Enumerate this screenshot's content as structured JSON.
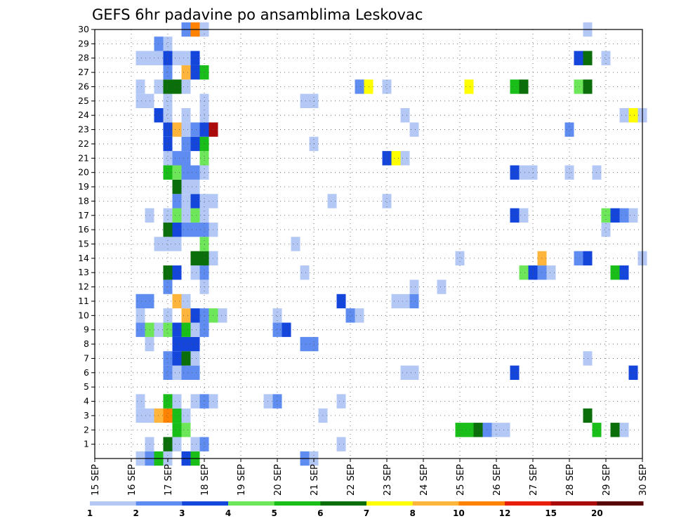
{
  "chart_data": {
    "type": "heatmap",
    "title": "GEFS 6hr padavine po ansamblima Leskovac",
    "xlabel": "",
    "ylabel": "",
    "x_ticks": [
      "15 SEP",
      "16 SEP",
      "17 SEP",
      "18 SEP",
      "19 SEP",
      "20 SEP",
      "21 SEP",
      "22 SEP",
      "23 SEP",
      "24 SEP",
      "25 SEP",
      "26 SEP",
      "27 SEP",
      "28 SEP",
      "29 SEP",
      "30 SEP"
    ],
    "y_ticks": [
      "1",
      "2",
      "3",
      "4",
      "5",
      "6",
      "7",
      "8",
      "9",
      "10",
      "11",
      "12",
      "13",
      "14",
      "15",
      "16",
      "17",
      "18",
      "19",
      "20",
      "21",
      "22",
      "23",
      "24",
      "25",
      "26",
      "27",
      "28",
      "29",
      "30"
    ],
    "xlim": [
      0,
      15
    ],
    "ylim": [
      0,
      30
    ],
    "step_days": 0.25,
    "grid": true,
    "colorbar": {
      "labels": [
        "1",
        "2",
        "3",
        "4",
        "5",
        "6",
        "7",
        "8",
        "10",
        "12",
        "15",
        "20"
      ],
      "colors": [
        "#b4c8f5",
        "#5f8cf0",
        "#1446dc",
        "#6ee65a",
        "#19be19",
        "#0a6e0a",
        "#ffff00",
        "#ffb43c",
        "#ff8200",
        "#e61e0a",
        "#aa0a0a",
        "#5a0505"
      ]
    },
    "cells": [
      [
        1.25,
        0,
        0
      ],
      [
        1.5,
        0,
        1
      ],
      [
        1.75,
        0,
        4
      ],
      [
        2.0,
        0,
        0
      ],
      [
        2.5,
        0,
        2
      ],
      [
        2.75,
        0,
        4
      ],
      [
        5.75,
        0,
        1
      ],
      [
        6.0,
        0,
        0
      ],
      [
        1.5,
        1,
        0
      ],
      [
        2.0,
        1,
        5
      ],
      [
        2.25,
        1,
        0
      ],
      [
        2.75,
        1,
        0
      ],
      [
        3.0,
        1,
        1
      ],
      [
        6.75,
        1,
        0
      ],
      [
        2.25,
        2,
        4
      ],
      [
        2.5,
        2,
        3
      ],
      [
        10.0,
        2,
        4
      ],
      [
        10.25,
        2,
        4
      ],
      [
        10.5,
        2,
        5
      ],
      [
        10.75,
        2,
        1
      ],
      [
        11.0,
        2,
        0
      ],
      [
        11.25,
        2,
        0
      ],
      [
        13.75,
        2,
        4
      ],
      [
        14.25,
        2,
        5
      ],
      [
        14.5,
        2,
        0
      ],
      [
        1.25,
        3,
        0
      ],
      [
        1.5,
        3,
        0
      ],
      [
        1.75,
        3,
        7
      ],
      [
        2.0,
        3,
        8
      ],
      [
        2.25,
        3,
        4
      ],
      [
        2.5,
        3,
        0
      ],
      [
        6.25,
        3,
        0
      ],
      [
        13.5,
        3,
        5
      ],
      [
        1.25,
        4,
        0
      ],
      [
        2.0,
        4,
        4
      ],
      [
        2.25,
        4,
        0
      ],
      [
        2.75,
        4,
        0
      ],
      [
        3.0,
        4,
        1
      ],
      [
        3.25,
        4,
        0
      ],
      [
        4.75,
        4,
        0
      ],
      [
        5.0,
        4,
        1
      ],
      [
        6.75,
        4,
        0
      ],
      [
        2.0,
        6,
        1
      ],
      [
        2.25,
        6,
        0
      ],
      [
        2.5,
        6,
        1
      ],
      [
        2.75,
        6,
        1
      ],
      [
        8.5,
        6,
        0
      ],
      [
        8.75,
        6,
        0
      ],
      [
        11.5,
        6,
        2
      ],
      [
        14.75,
        6,
        2
      ],
      [
        2.0,
        7,
        1
      ],
      [
        2.25,
        7,
        2
      ],
      [
        2.5,
        7,
        5
      ],
      [
        2.75,
        7,
        0
      ],
      [
        13.5,
        7,
        0
      ],
      [
        1.5,
        8,
        0
      ],
      [
        2.25,
        8,
        2
      ],
      [
        2.5,
        8,
        2
      ],
      [
        2.75,
        8,
        2
      ],
      [
        5.75,
        8,
        1
      ],
      [
        6.0,
        8,
        1
      ],
      [
        1.25,
        9,
        1
      ],
      [
        1.5,
        9,
        3
      ],
      [
        1.75,
        9,
        0
      ],
      [
        2.0,
        9,
        3
      ],
      [
        2.25,
        9,
        2
      ],
      [
        2.5,
        9,
        4
      ],
      [
        2.75,
        9,
        0
      ],
      [
        3.0,
        9,
        1
      ],
      [
        5.0,
        9,
        1
      ],
      [
        5.25,
        9,
        2
      ],
      [
        1.25,
        10,
        0
      ],
      [
        2.0,
        10,
        0
      ],
      [
        2.5,
        10,
        7
      ],
      [
        2.75,
        10,
        2
      ],
      [
        3.0,
        10,
        1
      ],
      [
        3.25,
        10,
        3
      ],
      [
        3.5,
        10,
        0
      ],
      [
        5.0,
        10,
        0
      ],
      [
        7.0,
        10,
        1
      ],
      [
        7.25,
        10,
        0
      ],
      [
        1.25,
        11,
        1
      ],
      [
        1.5,
        11,
        1
      ],
      [
        2.25,
        11,
        7
      ],
      [
        2.5,
        11,
        0
      ],
      [
        6.75,
        11,
        2
      ],
      [
        8.25,
        11,
        0
      ],
      [
        8.5,
        11,
        0
      ],
      [
        8.75,
        11,
        1
      ],
      [
        2.0,
        12,
        1
      ],
      [
        3.0,
        12,
        0
      ],
      [
        8.75,
        12,
        0
      ],
      [
        9.5,
        12,
        0
      ],
      [
        2.0,
        13,
        5
      ],
      [
        2.25,
        13,
        2
      ],
      [
        2.75,
        13,
        0
      ],
      [
        3.0,
        13,
        1
      ],
      [
        5.75,
        13,
        0
      ],
      [
        11.75,
        13,
        3
      ],
      [
        12.0,
        13,
        2
      ],
      [
        12.25,
        13,
        1
      ],
      [
        12.5,
        13,
        0
      ],
      [
        14.25,
        13,
        4
      ],
      [
        14.5,
        13,
        2
      ],
      [
        2.75,
        14,
        5
      ],
      [
        3.0,
        14,
        5
      ],
      [
        3.25,
        14,
        0
      ],
      [
        10.0,
        14,
        0
      ],
      [
        12.25,
        14,
        7
      ],
      [
        13.25,
        14,
        1
      ],
      [
        13.5,
        14,
        2
      ],
      [
        15.0,
        14,
        0
      ],
      [
        1.75,
        15,
        0
      ],
      [
        2.0,
        15,
        0
      ],
      [
        2.25,
        15,
        0
      ],
      [
        3.0,
        15,
        3
      ],
      [
        5.5,
        15,
        0
      ],
      [
        2.0,
        16,
        5
      ],
      [
        2.25,
        16,
        2
      ],
      [
        2.5,
        16,
        1
      ],
      [
        2.75,
        16,
        1
      ],
      [
        3.0,
        16,
        1
      ],
      [
        3.25,
        16,
        0
      ],
      [
        14.0,
        16,
        0
      ],
      [
        1.5,
        17,
        0
      ],
      [
        2.0,
        17,
        0
      ],
      [
        2.25,
        17,
        3
      ],
      [
        2.5,
        17,
        0
      ],
      [
        2.75,
        17,
        3
      ],
      [
        3.0,
        17,
        0
      ],
      [
        11.5,
        17,
        2
      ],
      [
        11.75,
        17,
        0
      ],
      [
        14.0,
        17,
        3
      ],
      [
        14.25,
        17,
        2
      ],
      [
        14.5,
        17,
        1
      ],
      [
        14.75,
        17,
        0
      ],
      [
        2.25,
        18,
        1
      ],
      [
        2.5,
        18,
        0
      ],
      [
        2.75,
        18,
        2
      ],
      [
        3.0,
        18,
        0
      ],
      [
        3.25,
        18,
        0
      ],
      [
        6.5,
        18,
        0
      ],
      [
        8.0,
        18,
        0
      ],
      [
        2.25,
        19,
        5
      ],
      [
        2.5,
        19,
        0
      ],
      [
        2.75,
        19,
        0
      ],
      [
        2.0,
        20,
        4
      ],
      [
        2.25,
        20,
        3
      ],
      [
        2.5,
        20,
        1
      ],
      [
        2.75,
        20,
        1
      ],
      [
        3.0,
        20,
        0
      ],
      [
        11.5,
        20,
        2
      ],
      [
        11.75,
        20,
        0
      ],
      [
        12.0,
        20,
        0
      ],
      [
        13.0,
        20,
        0
      ],
      [
        13.75,
        20,
        0
      ],
      [
        2.0,
        21,
        0
      ],
      [
        2.25,
        21,
        1
      ],
      [
        2.5,
        21,
        1
      ],
      [
        3.0,
        21,
        3
      ],
      [
        8.0,
        21,
        2
      ],
      [
        8.25,
        21,
        6
      ],
      [
        8.5,
        21,
        0
      ],
      [
        2.0,
        22,
        2
      ],
      [
        2.5,
        22,
        1
      ],
      [
        2.75,
        22,
        2
      ],
      [
        3.0,
        22,
        4
      ],
      [
        6.0,
        22,
        0
      ],
      [
        2.0,
        23,
        2
      ],
      [
        2.25,
        23,
        7
      ],
      [
        2.5,
        23,
        0
      ],
      [
        2.75,
        23,
        1
      ],
      [
        3.0,
        23,
        2
      ],
      [
        3.25,
        23,
        10
      ],
      [
        8.75,
        23,
        0
      ],
      [
        13.0,
        23,
        1
      ],
      [
        1.75,
        24,
        2
      ],
      [
        2.0,
        24,
        0
      ],
      [
        2.5,
        24,
        0
      ],
      [
        3.0,
        24,
        0
      ],
      [
        8.5,
        24,
        0
      ],
      [
        14.5,
        24,
        0
      ],
      [
        14.75,
        24,
        6
      ],
      [
        15.0,
        24,
        0
      ],
      [
        1.25,
        25,
        0
      ],
      [
        1.5,
        25,
        0
      ],
      [
        2.0,
        25,
        0
      ],
      [
        3.0,
        25,
        0
      ],
      [
        5.75,
        25,
        0
      ],
      [
        6.0,
        25,
        0
      ],
      [
        1.25,
        26,
        0
      ],
      [
        1.75,
        26,
        0
      ],
      [
        2.0,
        26,
        5
      ],
      [
        2.25,
        26,
        5
      ],
      [
        2.5,
        26,
        0
      ],
      [
        7.25,
        26,
        1
      ],
      [
        7.5,
        26,
        6
      ],
      [
        8.0,
        26,
        0
      ],
      [
        10.25,
        26,
        6
      ],
      [
        11.5,
        26,
        4
      ],
      [
        11.75,
        26,
        5
      ],
      [
        13.25,
        26,
        3
      ],
      [
        13.5,
        26,
        5
      ],
      [
        2.0,
        27,
        1
      ],
      [
        2.5,
        27,
        7
      ],
      [
        2.75,
        27,
        2
      ],
      [
        3.0,
        27,
        4
      ],
      [
        1.25,
        28,
        0
      ],
      [
        1.5,
        28,
        0
      ],
      [
        1.75,
        28,
        0
      ],
      [
        2.0,
        28,
        2
      ],
      [
        2.25,
        28,
        0
      ],
      [
        2.5,
        28,
        0
      ],
      [
        2.75,
        28,
        2
      ],
      [
        13.25,
        28,
        2
      ],
      [
        13.5,
        28,
        5
      ],
      [
        14.0,
        28,
        0
      ],
      [
        1.75,
        29,
        1
      ],
      [
        2.0,
        29,
        0
      ],
      [
        2.5,
        30,
        1
      ],
      [
        2.75,
        30,
        8
      ],
      [
        3.0,
        30,
        0
      ],
      [
        13.5,
        30,
        0
      ]
    ]
  }
}
